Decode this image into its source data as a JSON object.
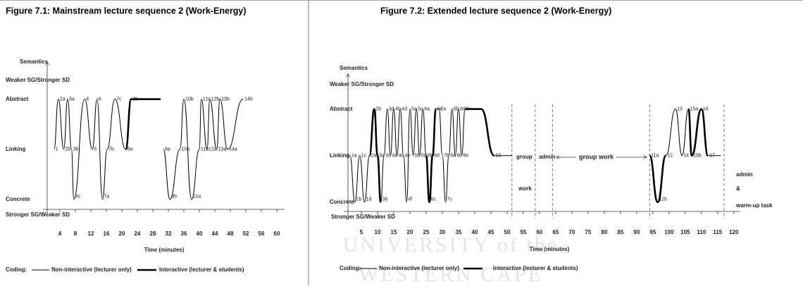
{
  "watermark": [
    "UNIVERSITY of the",
    "WESTERN CAPE"
  ],
  "chart_data": [
    {
      "type": "line",
      "title": "Figure 7.1: Mainstream lecture sequence 2 (Work-Energy)",
      "y_label": "Semantics",
      "y_top_label": "Weaker SG/Stronger SD",
      "y_bottom_label": "Stronger SG/Weaker SD",
      "x_label": "Time (minutes)",
      "legend_title": "Coding:",
      "x": [
        2.5,
        3.6,
        5,
        6,
        7,
        7.6,
        10.4,
        12.4,
        13.6,
        15,
        16.2,
        18.2,
        21,
        22.4,
        30,
        30.7,
        32.4,
        35,
        36,
        38,
        40,
        40.5,
        42,
        42.7,
        44.5,
        45.3,
        47.3,
        51.3
      ],
      "point_labels": [
        "1",
        "2a",
        "2b",
        "3a",
        "3b",
        "3c",
        "4",
        "5",
        "6",
        "7a",
        "7b",
        "7c",
        "8a",
        "8b",
        null,
        "9a",
        "9b",
        "10a",
        "10b",
        "11a",
        "11b",
        "11c",
        "12a",
        "12b",
        "13a",
        "13b",
        "14a",
        "14b"
      ],
      "series": [
        {
          "name": "Non-interactive (lecturer only)",
          "color": "#000000",
          "values": [
            2,
            3,
            2,
            3,
            2,
            1,
            3,
            2,
            3,
            1,
            2,
            3,
            2,
            null,
            null,
            2,
            1,
            2,
            3,
            1,
            2,
            3,
            2,
            3,
            2,
            3,
            2,
            3
          ]
        },
        {
          "name": "Interactive (lecturer & students)",
          "color": "#000000",
          "values": [
            null,
            null,
            null,
            null,
            null,
            null,
            null,
            null,
            null,
            null,
            null,
            null,
            2,
            3,
            3,
            null,
            null,
            null,
            null,
            null,
            null,
            null,
            null,
            null,
            null,
            null,
            null,
            null
          ]
        }
      ],
      "xlim": [
        0,
        62
      ],
      "xticks": [
        4,
        8,
        12,
        16,
        20,
        24,
        28,
        32,
        36,
        40,
        44,
        48,
        52,
        56,
        60
      ],
      "ylim": [
        0.8,
        3.6
      ],
      "yticks": [
        {
          "value": 1,
          "label": "Concrete"
        },
        {
          "value": 2,
          "label": "Linking"
        },
        {
          "value": 3,
          "label": "Abstract"
        }
      ]
    },
    {
      "type": "line",
      "title": "Figure 7.2: Extended lecture sequence 2 (Work-Energy)",
      "y_label": "Semantics",
      "y_top_label": "Weaker SG/Stronger SD",
      "y_bottom_label": "Stronger SG/Weaker SD",
      "x_label": "Time (minutes)",
      "legend_title": "Coding:",
      "x": [
        1.5,
        3,
        4.5,
        6,
        7.5,
        9,
        10,
        11,
        12,
        13,
        14,
        15,
        16,
        17,
        18,
        19,
        20,
        21,
        22,
        23,
        24,
        25,
        26,
        27,
        28,
        29,
        30,
        31,
        32,
        33,
        34,
        35,
        36,
        37,
        42,
        46,
        51.5,
        70,
        94,
        96.5,
        99,
        102,
        104,
        106,
        107,
        110,
        112,
        116
      ],
      "point_labels": [
        "1a",
        "1b",
        "1c",
        "1d",
        "2a",
        "2b",
        "3a",
        "3b",
        "3c",
        "3d",
        "4a",
        "4b",
        "4c",
        "4d",
        "4e",
        "4f",
        "5a",
        "5b",
        "5c",
        "5d",
        "6a",
        "6b",
        "6c",
        "6d",
        "6e",
        "7a",
        "7b",
        "7c",
        "8a",
        "8b",
        "8c",
        "8d",
        "8e",
        "9",
        null,
        "10",
        null,
        null,
        "11a",
        "11b",
        "12",
        "13",
        "14",
        "15a",
        "15b",
        "16",
        "17",
        null
      ],
      "series": [
        {
          "name": "Non-interactive (lecturer only)",
          "color": "#000000",
          "values": [
            2,
            1,
            2,
            1,
            2,
            null,
            null,
            1,
            2,
            3,
            2,
            3,
            2,
            3,
            2,
            1,
            3,
            2,
            3,
            2,
            3,
            2,
            null,
            null,
            3,
            3,
            2,
            1,
            2,
            3,
            2,
            3,
            2,
            3,
            null,
            2,
            2,
            null,
            null,
            null,
            2,
            3,
            2,
            3,
            null,
            null,
            2,
            2
          ]
        },
        {
          "name": "Interactive (lecturer & students)",
          "color": "#000000",
          "values": [
            null,
            null,
            null,
            null,
            2,
            3,
            2,
            1,
            null,
            null,
            null,
            null,
            null,
            null,
            null,
            null,
            null,
            null,
            null,
            null,
            null,
            2,
            1,
            2,
            3,
            null,
            null,
            null,
            null,
            null,
            null,
            null,
            null,
            3,
            3,
            2,
            null,
            null,
            2,
            1,
            2,
            null,
            null,
            3,
            2,
            3,
            2,
            null
          ]
        }
      ],
      "phase_boundaries": [
        51.5,
        58.7,
        64,
        94,
        117
      ],
      "annotations": [
        "group",
        "work",
        "admin",
        "group work",
        "admin",
        "&",
        "warm-up task"
      ],
      "xlim": [
        0,
        122
      ],
      "xticks": [
        5,
        10,
        15,
        20,
        25,
        30,
        35,
        40,
        45,
        50,
        55,
        60,
        65,
        70,
        75,
        80,
        85,
        90,
        95,
        100,
        105,
        110,
        115,
        120
      ],
      "ylim": [
        0.8,
        3.6
      ],
      "yticks": [
        {
          "value": 1,
          "label": "Concrete"
        },
        {
          "value": 2,
          "label": "Linking"
        },
        {
          "value": 3,
          "label": "Abstract"
        }
      ]
    }
  ]
}
